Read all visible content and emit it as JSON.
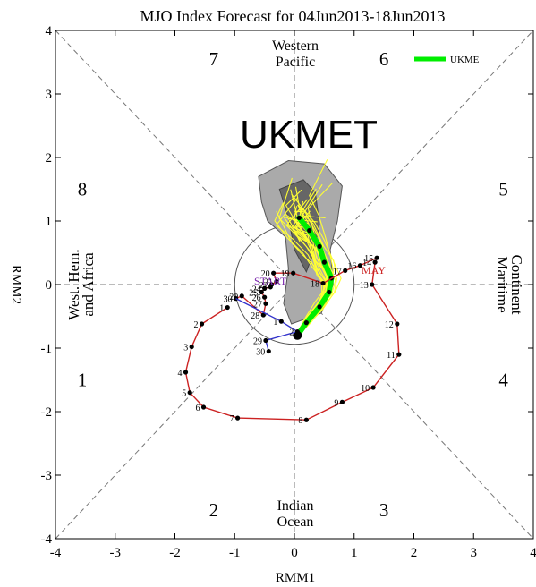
{
  "chart_data": {
    "type": "scatter",
    "title": "MJO Index Forecast for 04Jun2013-18Jun2013",
    "model_label": "UKMET",
    "xlabel": "RMM1",
    "ylabel": "RMM2",
    "xlim": [
      -4,
      4
    ],
    "ylim": [
      -4,
      4
    ],
    "x_ticks": [
      "-4",
      "-3",
      "-2",
      "-1",
      "0",
      "1",
      "2",
      "3",
      "4"
    ],
    "y_ticks": [
      "-4",
      "-3",
      "-2",
      "-1",
      "0",
      "1",
      "2",
      "3",
      "4"
    ],
    "phase_numbers": [
      {
        "label": "1",
        "x": -3.55,
        "y": -1.5
      },
      {
        "label": "2",
        "x": -1.35,
        "y": -3.55
      },
      {
        "label": "3",
        "x": 1.5,
        "y": -3.55
      },
      {
        "label": "4",
        "x": 3.5,
        "y": -1.5
      },
      {
        "label": "5",
        "x": 3.5,
        "y": 1.5
      },
      {
        "label": "6",
        "x": 1.5,
        "y": 3.55
      },
      {
        "label": "7",
        "x": -1.35,
        "y": 3.55
      },
      {
        "label": "8",
        "x": -3.55,
        "y": 1.5
      }
    ],
    "regions": {
      "top": [
        "Western",
        "Pacific"
      ],
      "bottom": [
        "Indian",
        "Ocean"
      ],
      "left": [
        "West. Hem.",
        "and Africa"
      ],
      "right": [
        "Maritime",
        "Continent"
      ]
    },
    "legend": {
      "label": "UKME",
      "color": "#00ee00"
    },
    "markers": {
      "start": "START",
      "may": "MAY"
    },
    "colors": {
      "may_track": "#cc2222",
      "june_track": "#3333cc",
      "start_label": "#7722aa",
      "ensemble": "#ffff33",
      "mean": "#00ee00",
      "spread_dark": "#666666",
      "spread_light": "#aaaaaa"
    },
    "may_track": [
      {
        "label": "1",
        "x": -1.12,
        "y": -0.36
      },
      {
        "label": "2",
        "x": -1.55,
        "y": -0.62
      },
      {
        "label": "3",
        "x": -1.72,
        "y": -0.98
      },
      {
        "label": "4",
        "x": -1.82,
        "y": -1.38
      },
      {
        "label": "5",
        "x": -1.75,
        "y": -1.7
      },
      {
        "label": "6",
        "x": -1.52,
        "y": -1.93
      },
      {
        "label": "7",
        "x": -0.95,
        "y": -2.1
      },
      {
        "label": "8",
        "x": 0.2,
        "y": -2.13
      },
      {
        "label": "9",
        "x": 0.8,
        "y": -1.85
      },
      {
        "label": "10",
        "x": 1.32,
        "y": -1.62
      },
      {
        "label": "11",
        "x": 1.75,
        "y": -1.1
      },
      {
        "label": "12",
        "x": 1.72,
        "y": -0.62
      },
      {
        "label": "13",
        "x": 1.3,
        "y": 0.0
      },
      {
        "label": "14",
        "x": 1.35,
        "y": 0.35
      },
      {
        "label": "15",
        "x": 1.38,
        "y": 0.42
      },
      {
        "label": "16",
        "x": 1.1,
        "y": 0.3
      },
      {
        "label": "17",
        "x": 0.85,
        "y": 0.22
      },
      {
        "label": "18",
        "x": 0.48,
        "y": 0.02
      },
      {
        "label": "19",
        "x": -0.02,
        "y": 0.18
      },
      {
        "label": "20",
        "x": -0.35,
        "y": 0.18
      },
      {
        "label": "21",
        "x": -0.3,
        "y": 0.05
      },
      {
        "label": "22",
        "x": -0.38,
        "y": 0.0
      },
      {
        "label": "23",
        "x": -0.4,
        "y": -0.04
      },
      {
        "label": "24",
        "x": -0.5,
        "y": -0.06
      },
      {
        "label": "25",
        "x": -0.55,
        "y": -0.12
      },
      {
        "label": "26",
        "x": -0.5,
        "y": -0.2
      },
      {
        "label": "27",
        "x": -0.48,
        "y": -0.3
      },
      {
        "label": "28",
        "x": -0.52,
        "y": -0.48
      },
      {
        "label": "29",
        "x": -0.88,
        "y": -0.18
      },
      {
        "label": "30",
        "x": -0.98,
        "y": -0.22
      }
    ],
    "june_track": [
      {
        "label": "1",
        "x": -0.22,
        "y": -0.58
      },
      {
        "label": "2",
        "x": 0.05,
        "y": -0.74
      },
      {
        "label": "29",
        "x": -0.48,
        "y": -0.88
      },
      {
        "label": "30",
        "x": -0.43,
        "y": -1.05
      }
    ],
    "forecast_mean": [
      {
        "x": 0.05,
        "y": -0.8
      },
      {
        "x": 0.2,
        "y": -0.6
      },
      {
        "x": 0.42,
        "y": -0.35
      },
      {
        "x": 0.58,
        "y": -0.12
      },
      {
        "x": 0.62,
        "y": 0.1
      },
      {
        "x": 0.5,
        "y": 0.35
      },
      {
        "x": 0.42,
        "y": 0.6
      },
      {
        "x": 0.25,
        "y": 0.85
      },
      {
        "x": 0.08,
        "y": 1.05
      }
    ],
    "spread_outer": [
      [
        -0.6,
        1.7
      ],
      [
        -0.1,
        1.95
      ],
      [
        0.5,
        1.9
      ],
      [
        0.8,
        1.55
      ],
      [
        0.72,
        1.0
      ],
      [
        0.6,
        0.55
      ],
      [
        0.65,
        0.0
      ],
      [
        0.45,
        -0.45
      ],
      [
        -0.05,
        -0.62
      ],
      [
        -0.18,
        -0.3
      ],
      [
        -0.1,
        0.25
      ],
      [
        -0.15,
        0.75
      ],
      [
        -0.45,
        1.0
      ],
      [
        -0.55,
        1.3
      ]
    ],
    "spread_inner": [
      [
        -0.25,
        1.5
      ],
      [
        0.15,
        1.65
      ],
      [
        0.35,
        1.45
      ],
      [
        0.42,
        0.95
      ],
      [
        0.32,
        0.5
      ],
      [
        0.2,
        0.2
      ],
      [
        0.0,
        0.55
      ],
      [
        -0.1,
        1.05
      ]
    ]
  }
}
